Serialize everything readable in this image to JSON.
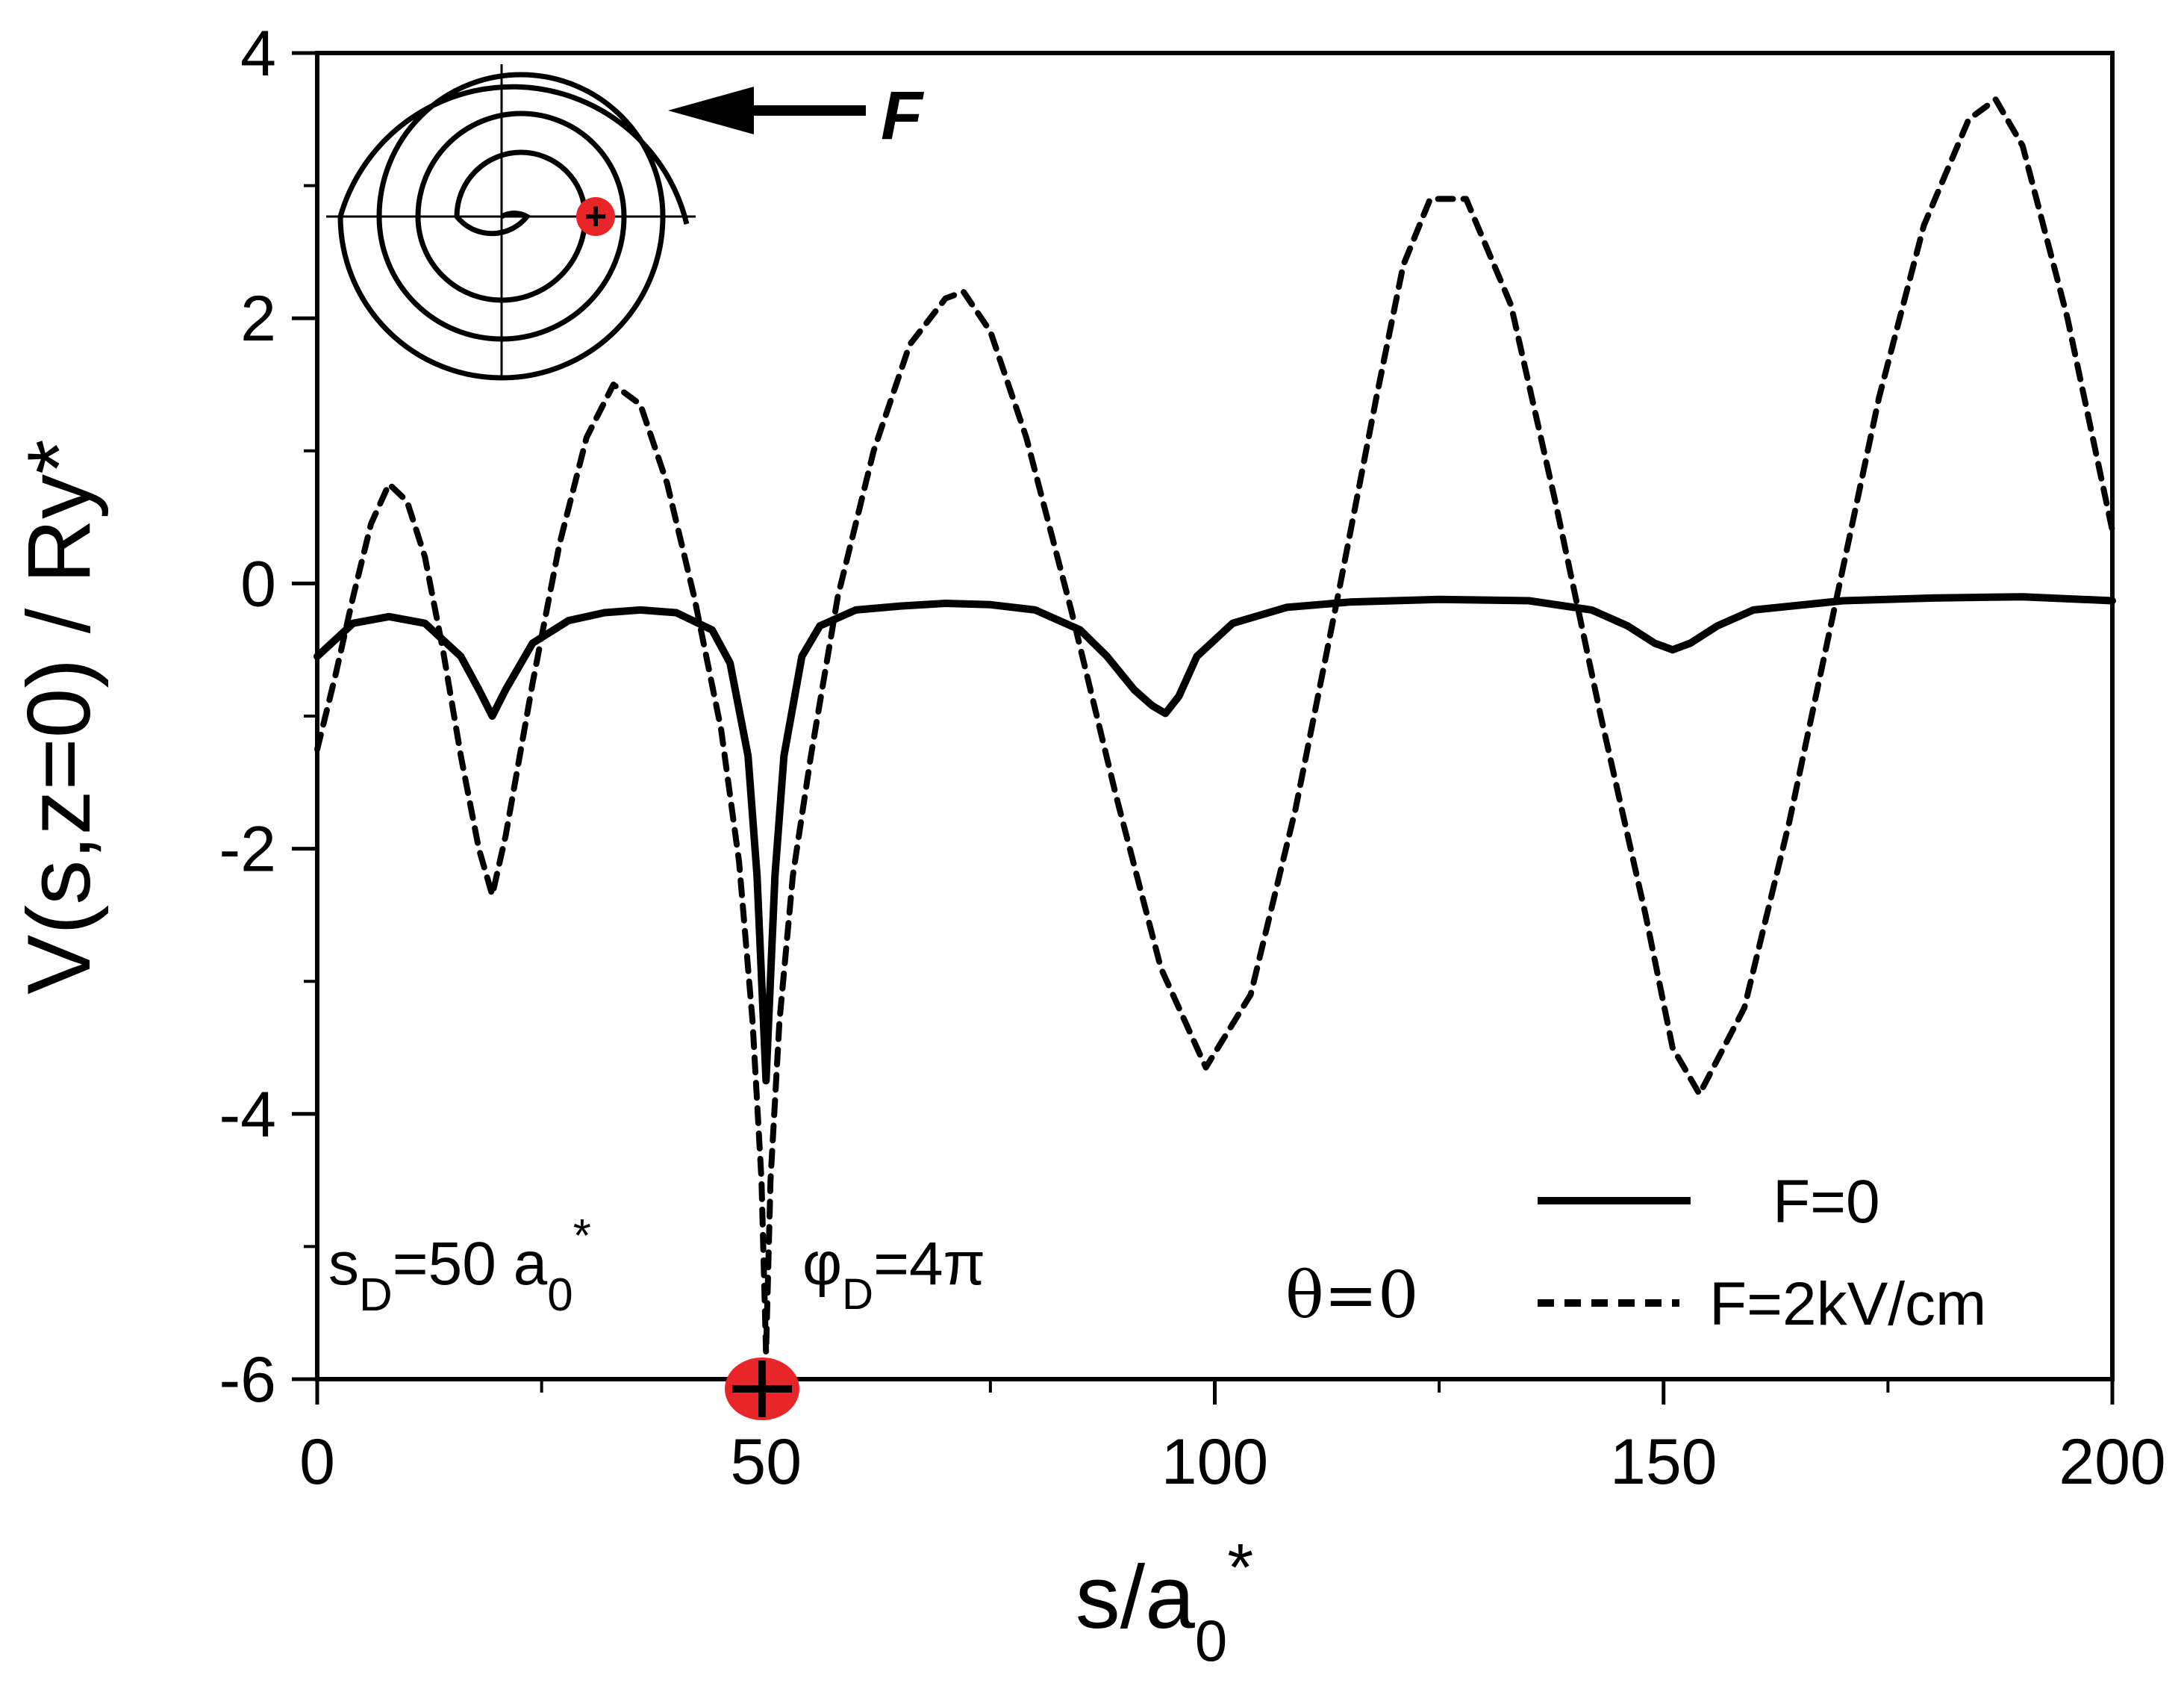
{
  "chart_data": {
    "type": "line",
    "xlim": [
      0,
      200
    ],
    "ylim": [
      -6,
      4
    ],
    "xticks": [
      0,
      50,
      100,
      150,
      200
    ],
    "yticks": [
      -6,
      -4,
      -2,
      0,
      2,
      4
    ],
    "xticks_minor": [
      25,
      75,
      125,
      175
    ],
    "yticks_minor": [
      -5,
      -3,
      -1,
      1,
      3
    ],
    "xlabel": "s/a",
    "xlabel_sub": "0",
    "xlabel_sup": "*",
    "ylabel": "V(s,z=0) / Ry*",
    "grid": false,
    "legend_position": "bottom-right",
    "series": [
      {
        "name": "F=0",
        "style": "solid",
        "x": [
          0,
          4,
          8,
          12,
          16,
          18,
          19.5,
          21,
          24,
          28,
          32,
          36,
          40,
          44,
          46,
          48,
          49,
          50,
          51,
          52,
          54,
          56,
          60,
          65,
          70,
          75,
          80,
          85,
          88,
          91,
          93,
          94.5,
          96,
          98,
          102,
          108,
          115,
          125,
          135,
          142,
          146,
          149,
          151,
          153,
          156,
          160,
          170,
          180,
          190,
          200
        ],
        "y": [
          -0.55,
          -0.3,
          -0.25,
          -0.3,
          -0.55,
          -0.8,
          -1.0,
          -0.8,
          -0.45,
          -0.28,
          -0.22,
          -0.2,
          -0.22,
          -0.35,
          -0.6,
          -1.3,
          -2.2,
          -3.75,
          -2.2,
          -1.3,
          -0.55,
          -0.32,
          -0.2,
          -0.17,
          -0.15,
          -0.16,
          -0.2,
          -0.35,
          -0.55,
          -0.8,
          -0.92,
          -0.98,
          -0.85,
          -0.55,
          -0.3,
          -0.18,
          -0.14,
          -0.12,
          -0.13,
          -0.2,
          -0.32,
          -0.45,
          -0.5,
          -0.45,
          -0.32,
          -0.2,
          -0.13,
          -0.11,
          -0.1,
          -0.13
        ]
      },
      {
        "name": "F=2kV/cm",
        "style": "dashed",
        "x": [
          0,
          2,
          4,
          6,
          8,
          10,
          12,
          14,
          16,
          18,
          19.5,
          21,
          24,
          27,
          30,
          33,
          36,
          39,
          42,
          45,
          47,
          48.5,
          49.5,
          50,
          50.5,
          51.5,
          53,
          55,
          58,
          62,
          66,
          70,
          72,
          75,
          79,
          84,
          89,
          94,
          99,
          104,
          109,
          114,
          118,
          121,
          124,
          128,
          133,
          138,
          143,
          148,
          151,
          154,
          159,
          164,
          169,
          174,
          179,
          184,
          187,
          190,
          195,
          200
        ],
        "y": [
          -1.25,
          -0.7,
          -0.1,
          0.45,
          0.75,
          0.62,
          0.2,
          -0.5,
          -1.3,
          -2.0,
          -2.35,
          -1.9,
          -0.75,
          0.3,
          1.1,
          1.5,
          1.35,
          0.75,
          -0.1,
          -1.1,
          -2.1,
          -3.3,
          -4.5,
          -5.8,
          -4.5,
          -3.3,
          -2.2,
          -1.3,
          -0.1,
          1.0,
          1.8,
          2.15,
          2.2,
          1.9,
          1.1,
          -0.2,
          -1.6,
          -2.9,
          -3.65,
          -3.1,
          -1.7,
          0.0,
          1.4,
          2.4,
          2.9,
          2.9,
          2.1,
          0.6,
          -1.0,
          -2.5,
          -3.5,
          -3.85,
          -3.2,
          -1.8,
          -0.2,
          1.4,
          2.7,
          3.5,
          3.65,
          3.3,
          2.0,
          0.4
        ]
      }
    ],
    "annotations": {
      "field_label": "F",
      "sd_main": "s",
      "sd_sub": "D",
      "sd_rest": "=50 a",
      "sd_sub2": "0",
      "sd_sup": "*",
      "phi_main": "φ",
      "phi_sub": "D",
      "phi_rest": "=4π",
      "theta": "θ=0"
    },
    "colors": {
      "line": "#000000",
      "charge_marker": "#e8262a"
    }
  }
}
